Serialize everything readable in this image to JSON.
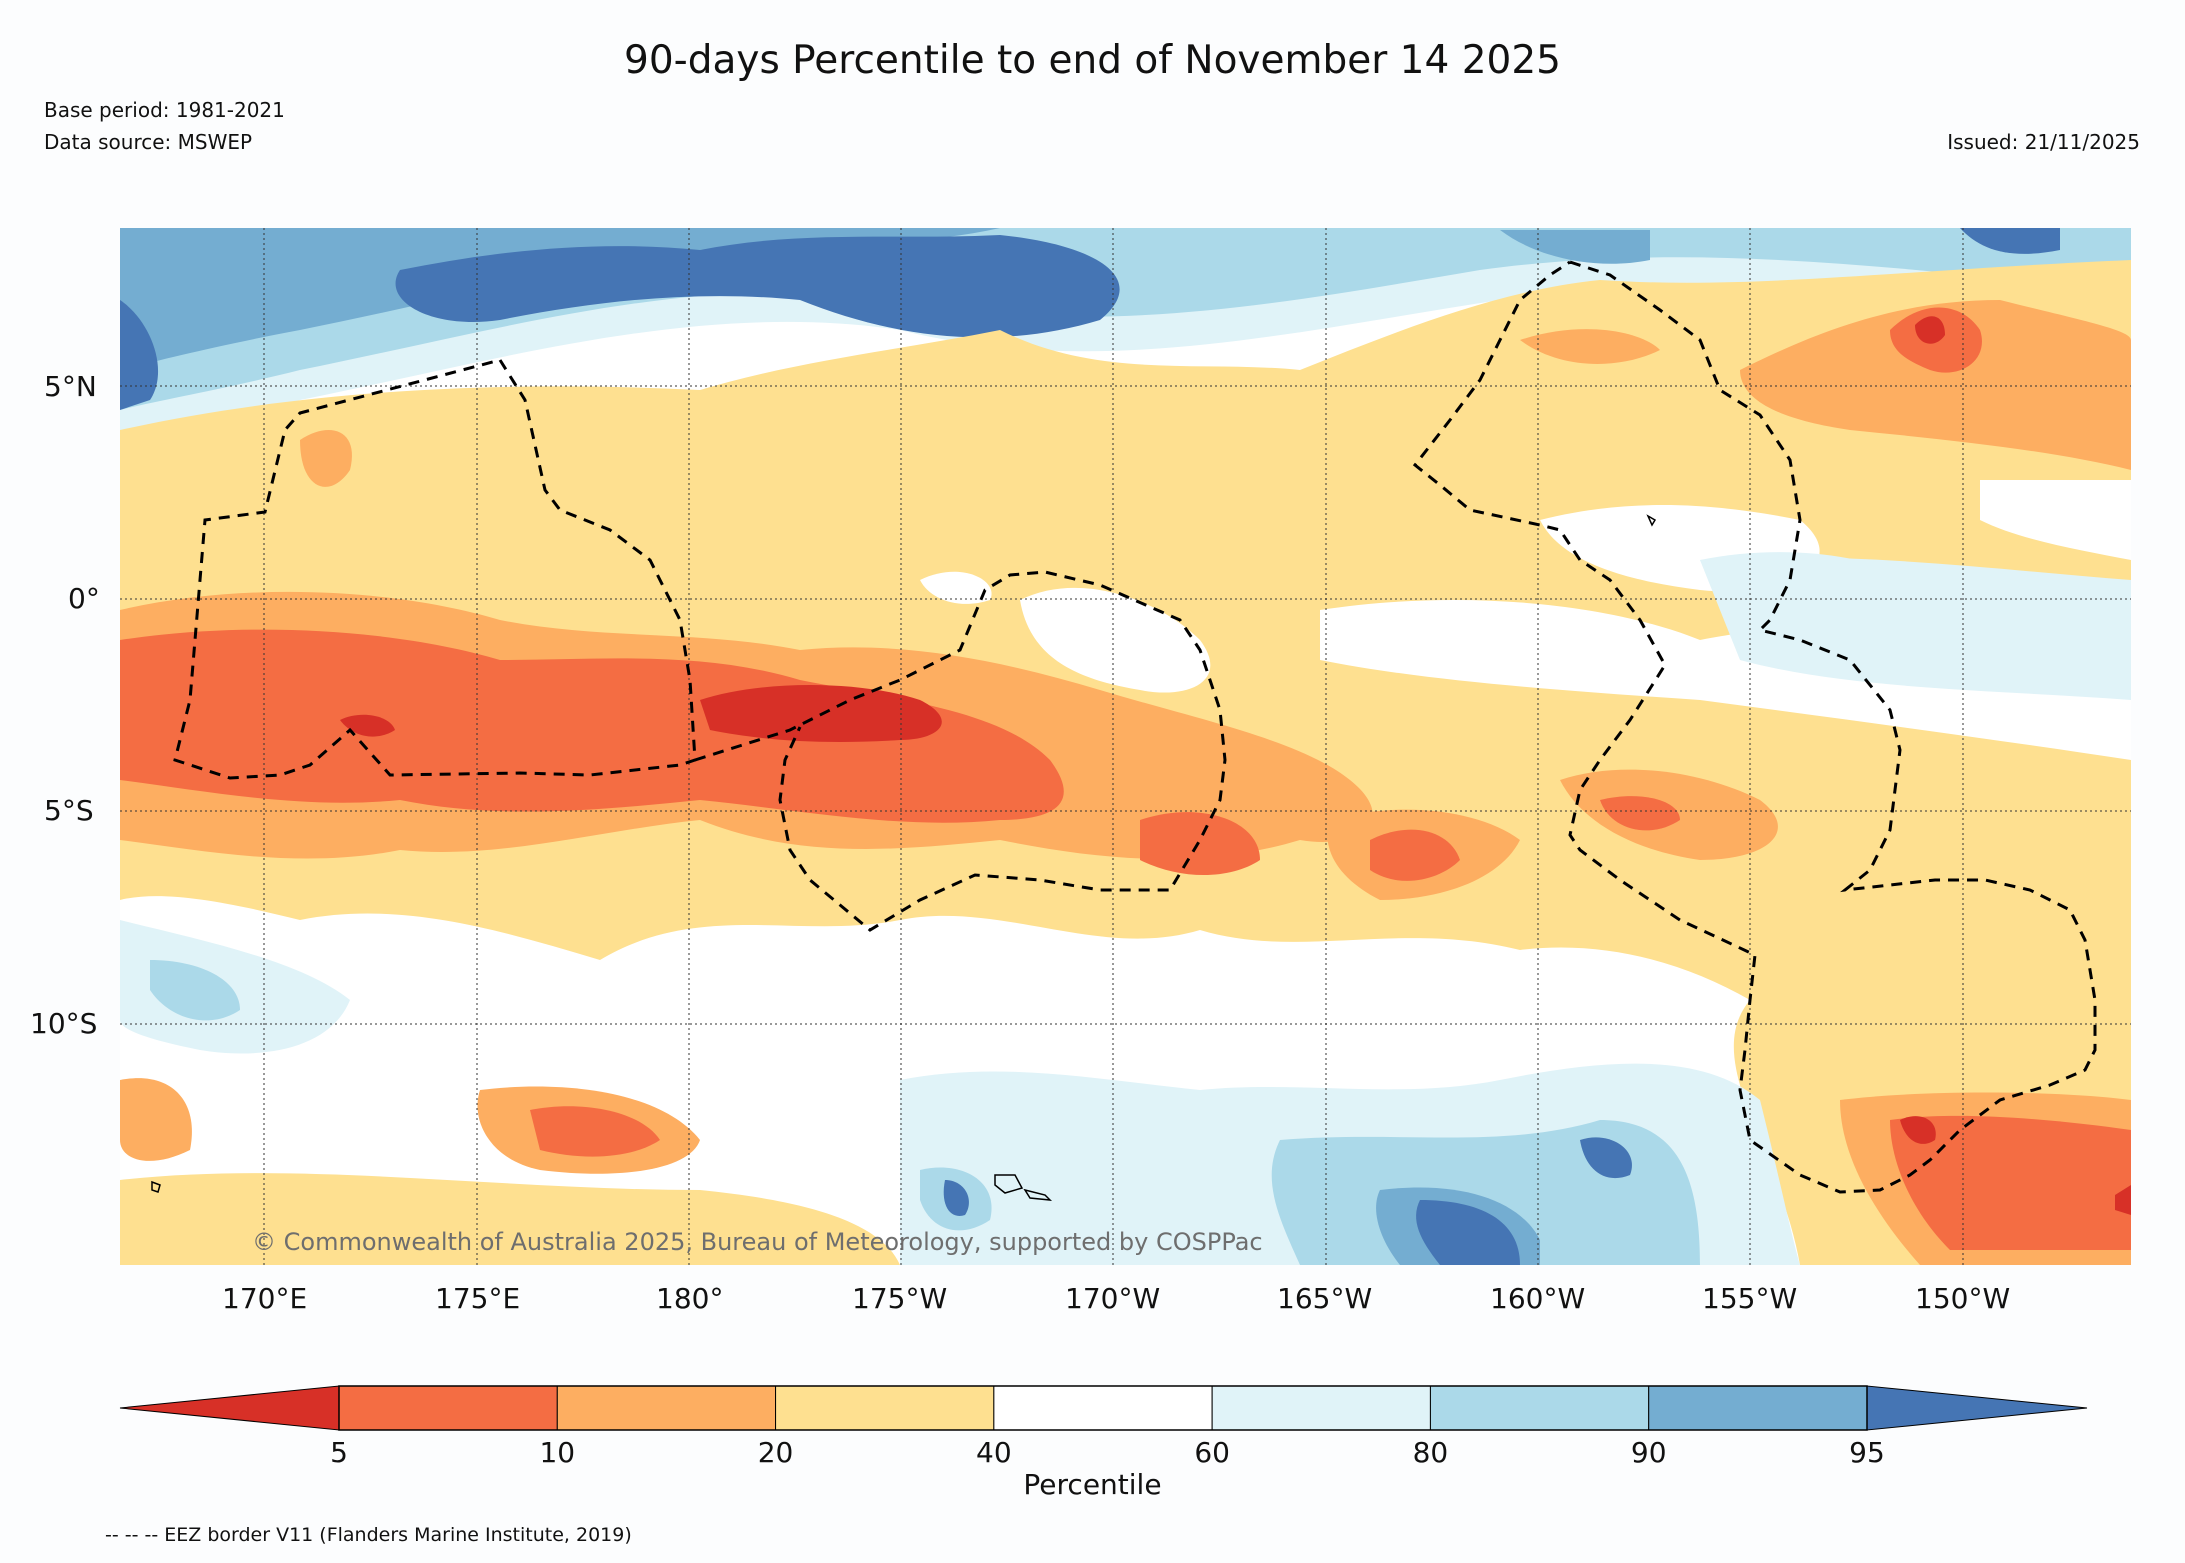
{
  "title": "90-days Percentile to end of November 14 2025",
  "base_period": "Base period: 1981-2021",
  "data_source": "Data source: MSWEP",
  "issued": "Issued: 21/11/2025",
  "credit": "© Commonwealth of Australia 2025, Bureau of Meteorology, supported by COSPPac",
  "footnote": "-- -- -- EEZ border V11 (Flanders Marine Institute, 2019)",
  "lat_labels": [
    "5°N",
    "0°",
    "5°S",
    "10°S"
  ],
  "lon_labels": [
    "170°E",
    "175°E",
    "180°",
    "175°W",
    "170°W",
    "165°W",
    "160°W",
    "155°W",
    "150°W"
  ],
  "colorbar": {
    "title": "Percentile",
    "ticks": [
      "5",
      "10",
      "20",
      "40",
      "60",
      "80",
      "90",
      "95"
    ],
    "colors": [
      "#d73027",
      "#f46d43",
      "#fdae61",
      "#fee090",
      "#ffffff",
      "#e0f3f8",
      "#abd9e9",
      "#74add1",
      "#4575b4"
    ]
  }
}
